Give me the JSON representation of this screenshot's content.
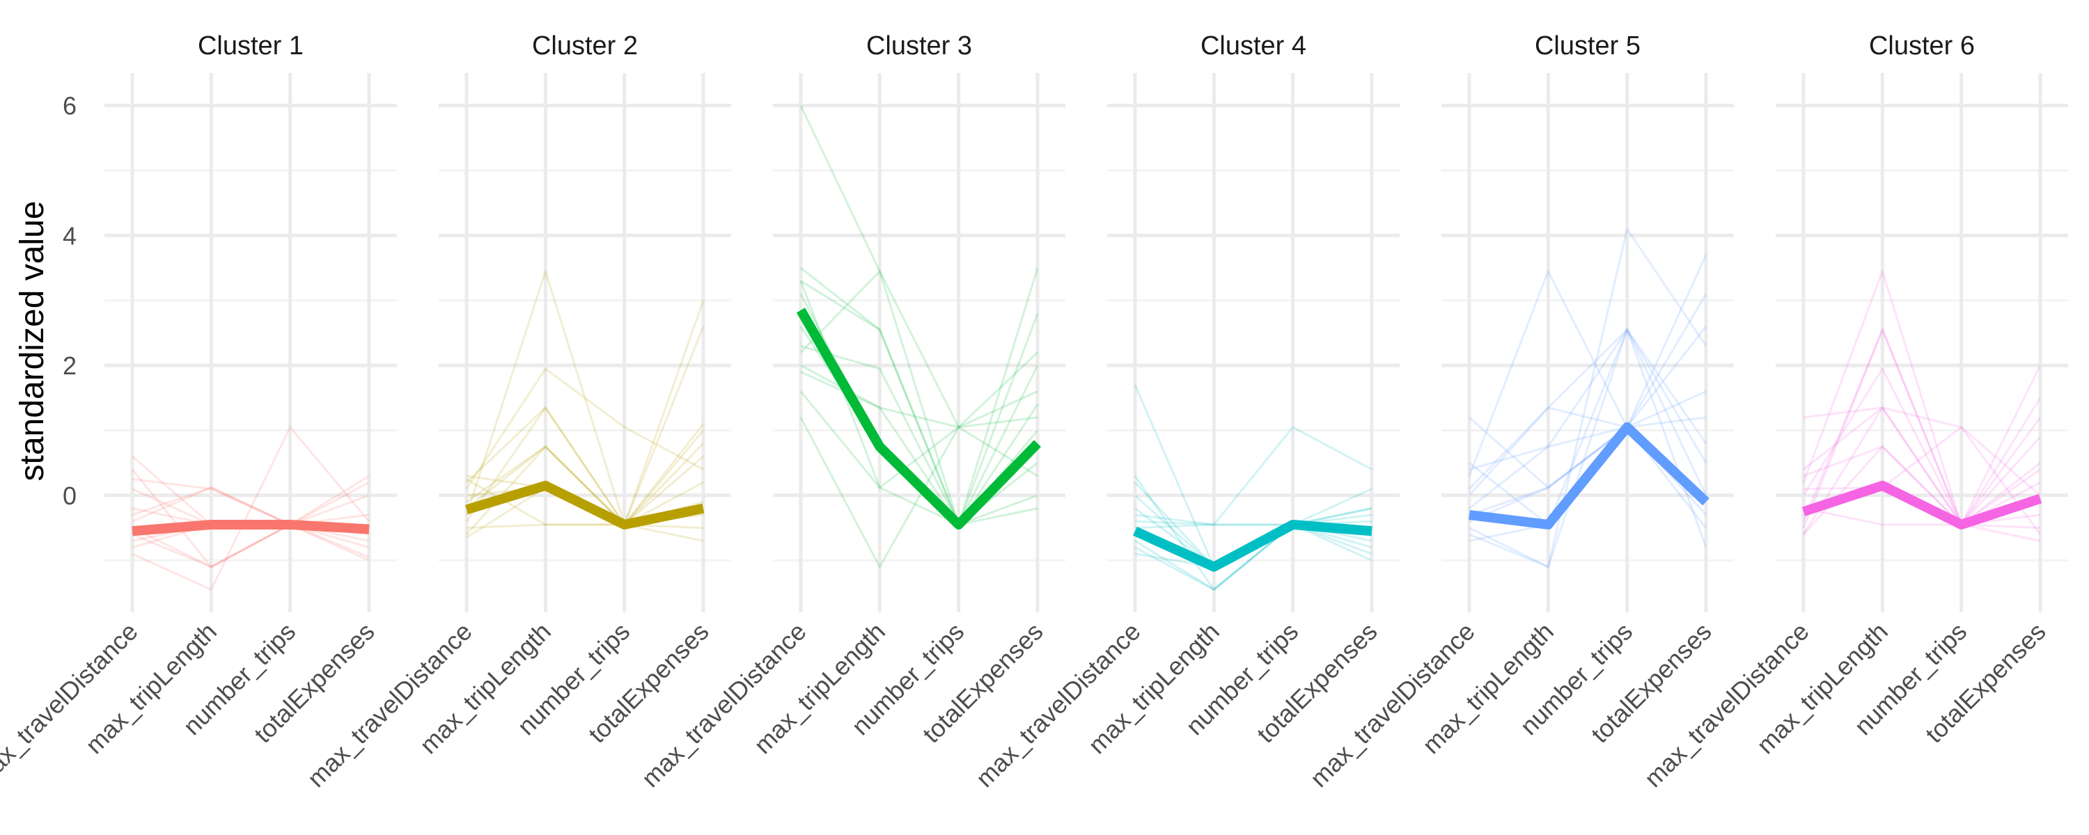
{
  "chart_data": {
    "type": "line",
    "subtype": "parallel-coordinates-faceted",
    "ylabel": "standardized value",
    "xlabel": "",
    "ylim": [
      -1.8,
      6.5
    ],
    "yticks": [
      0,
      2,
      4,
      6
    ],
    "grid": true,
    "variables": [
      "max_travelDistance",
      "max_tripLength",
      "number_trips",
      "totalExpenses"
    ],
    "facets": [
      {
        "title": "Cluster 1",
        "color": "#F8766D",
        "mean": [
          -0.55,
          -0.45,
          -0.45,
          -0.52
        ],
        "individuals": [
          [
            -0.6,
            -1.1,
            -0.45,
            -0.55
          ],
          [
            -0.3,
            0.12,
            -0.45,
            -0.95
          ],
          [
            0.6,
            -0.45,
            -0.45,
            0.2
          ],
          [
            -0.9,
            -1.45,
            1.05,
            -0.4
          ],
          [
            -0.2,
            -0.45,
            -0.45,
            -0.8
          ],
          [
            0.25,
            0.1,
            -0.45,
            0.3
          ],
          [
            -0.7,
            -0.45,
            -0.45,
            -0.7
          ],
          [
            -0.5,
            -1.1,
            -0.45,
            -0.3
          ],
          [
            0.1,
            -0.45,
            -0.45,
            -1.0
          ],
          [
            -0.4,
            0.12,
            -0.45,
            -0.6
          ],
          [
            -0.8,
            -0.45,
            -0.45,
            0.0
          ],
          [
            0.4,
            -1.1,
            -0.45,
            -0.5
          ]
        ]
      },
      {
        "title": "Cluster 2",
        "color": "#B79F00",
        "mean": [
          -0.22,
          0.15,
          -0.45,
          -0.2
        ],
        "individuals": [
          [
            -0.3,
            3.45,
            -0.45,
            1.0
          ],
          [
            0.2,
            1.35,
            -0.45,
            3.0
          ],
          [
            -0.6,
            0.75,
            -0.45,
            -0.5
          ],
          [
            0.1,
            1.95,
            1.05,
            0.4
          ],
          [
            -0.5,
            -0.45,
            -0.45,
            2.6
          ],
          [
            0.3,
            0.12,
            -0.45,
            -0.7
          ],
          [
            -0.1,
            0.75,
            -0.45,
            0.2
          ],
          [
            -0.65,
            0.12,
            -0.45,
            1.1
          ],
          [
            0.25,
            -0.45,
            -0.45,
            -0.3
          ],
          [
            -0.4,
            1.35,
            -0.45,
            0.6
          ],
          [
            0.0,
            0.12,
            -0.45,
            -0.1
          ],
          [
            -0.2,
            0.75,
            -0.45,
            0.8
          ]
        ]
      },
      {
        "title": "Cluster 3",
        "color": "#00BA38",
        "mean": [
          2.85,
          0.75,
          -0.45,
          0.8
        ],
        "individuals": [
          [
            6.0,
            3.45,
            1.05,
            1.2
          ],
          [
            3.3,
            2.55,
            -0.45,
            3.5
          ],
          [
            2.0,
            1.35,
            -0.45,
            0.5
          ],
          [
            1.2,
            -1.1,
            1.05,
            2.2
          ],
          [
            3.1,
            0.75,
            -0.45,
            0.0
          ],
          [
            2.3,
            1.95,
            -0.45,
            2.8
          ],
          [
            1.6,
            0.12,
            1.05,
            1.6
          ],
          [
            3.5,
            2.55,
            -0.45,
            -0.2
          ],
          [
            2.6,
            0.75,
            -0.45,
            1.0
          ],
          [
            1.9,
            1.35,
            1.05,
            0.3
          ],
          [
            3.3,
            0.12,
            -0.45,
            2.0
          ],
          [
            2.2,
            3.45,
            -0.45,
            1.4
          ]
        ]
      },
      {
        "title": "Cluster 4",
        "color": "#00BFC4",
        "mean": [
          -0.55,
          -1.1,
          -0.45,
          -0.55
        ],
        "individuals": [
          [
            1.7,
            -1.1,
            -0.45,
            -0.6
          ],
          [
            0.3,
            -1.45,
            -0.45,
            -0.2
          ],
          [
            -0.3,
            -0.45,
            1.05,
            0.4
          ],
          [
            -0.6,
            -1.1,
            -0.45,
            -0.9
          ],
          [
            -0.8,
            -1.45,
            -0.45,
            -0.4
          ],
          [
            0.0,
            -1.1,
            -0.45,
            -0.7
          ],
          [
            -0.5,
            -0.45,
            -0.45,
            -0.3
          ],
          [
            -0.2,
            -1.1,
            -0.45,
            -1.0
          ],
          [
            -0.7,
            -1.45,
            -0.45,
            -0.5
          ],
          [
            0.2,
            -1.1,
            -0.45,
            0.1
          ],
          [
            -0.4,
            -0.45,
            -0.45,
            -0.8
          ],
          [
            -0.9,
            -1.1,
            -0.45,
            -0.2
          ]
        ]
      },
      {
        "title": "Cluster 5",
        "color": "#619CFF",
        "mean": [
          -0.3,
          -0.45,
          1.05,
          -0.1
        ],
        "individuals": [
          [
            0.3,
            3.45,
            1.05,
            3.7
          ],
          [
            -0.6,
            -1.1,
            4.1,
            2.3
          ],
          [
            0.1,
            1.35,
            2.55,
            -0.8
          ],
          [
            -0.4,
            0.12,
            1.05,
            1.2
          ],
          [
            0.5,
            -0.45,
            2.55,
            0.5
          ],
          [
            -0.2,
            0.75,
            1.05,
            -0.5
          ],
          [
            1.2,
            0.12,
            1.05,
            2.6
          ],
          [
            -0.5,
            -1.1,
            2.55,
            0.0
          ],
          [
            0.0,
            1.35,
            1.05,
            1.6
          ],
          [
            -0.7,
            -0.45,
            1.05,
            -0.3
          ],
          [
            0.4,
            0.75,
            2.55,
            0.8
          ],
          [
            -0.3,
            0.12,
            1.05,
            3.1
          ]
        ]
      },
      {
        "title": "Cluster 6",
        "color": "#F564E3",
        "mean": [
          -0.25,
          0.15,
          -0.45,
          -0.05
        ],
        "individuals": [
          [
            0.2,
            3.45,
            -0.45,
            0.4
          ],
          [
            -0.5,
            2.55,
            -0.45,
            1.2
          ],
          [
            0.4,
            1.35,
            1.05,
            -0.6
          ],
          [
            -0.6,
            0.75,
            -0.45,
            2.0
          ],
          [
            0.0,
            1.95,
            -0.45,
            0.2
          ],
          [
            -0.3,
            0.12,
            -0.45,
            -0.7
          ],
          [
            1.2,
            1.35,
            -0.45,
            1.5
          ],
          [
            -0.2,
            -0.45,
            -0.45,
            0.5
          ],
          [
            0.3,
            0.75,
            -0.45,
            -0.3
          ],
          [
            -0.4,
            2.55,
            -0.45,
            0.9
          ],
          [
            0.1,
            0.12,
            1.05,
            0.0
          ],
          [
            -0.6,
            1.35,
            -0.45,
            -0.5
          ]
        ]
      }
    ]
  }
}
